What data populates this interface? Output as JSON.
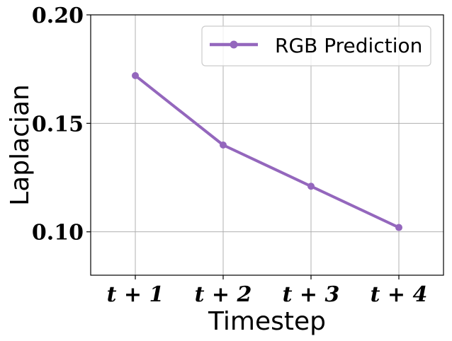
{
  "chart_data": {
    "type": "line",
    "categories": [
      "t + 1",
      "t + 2",
      "t + 3",
      "t + 4"
    ],
    "series": [
      {
        "name": "RGB Prediction",
        "values": [
          0.172,
          0.14,
          0.121,
          0.102
        ]
      }
    ],
    "title": "",
    "xlabel": "Timestep",
    "ylabel": "Laplacian",
    "ylim": [
      0.08,
      0.2
    ],
    "yticks": [
      0.1,
      0.15,
      0.2
    ],
    "ytick_labels": [
      "0.10",
      "0.15",
      "0.20"
    ],
    "grid": true,
    "legend_position": "upper-right",
    "colors": {
      "series": "#9467bd",
      "grid": "#b0b0b0",
      "axis": "#000000"
    }
  }
}
